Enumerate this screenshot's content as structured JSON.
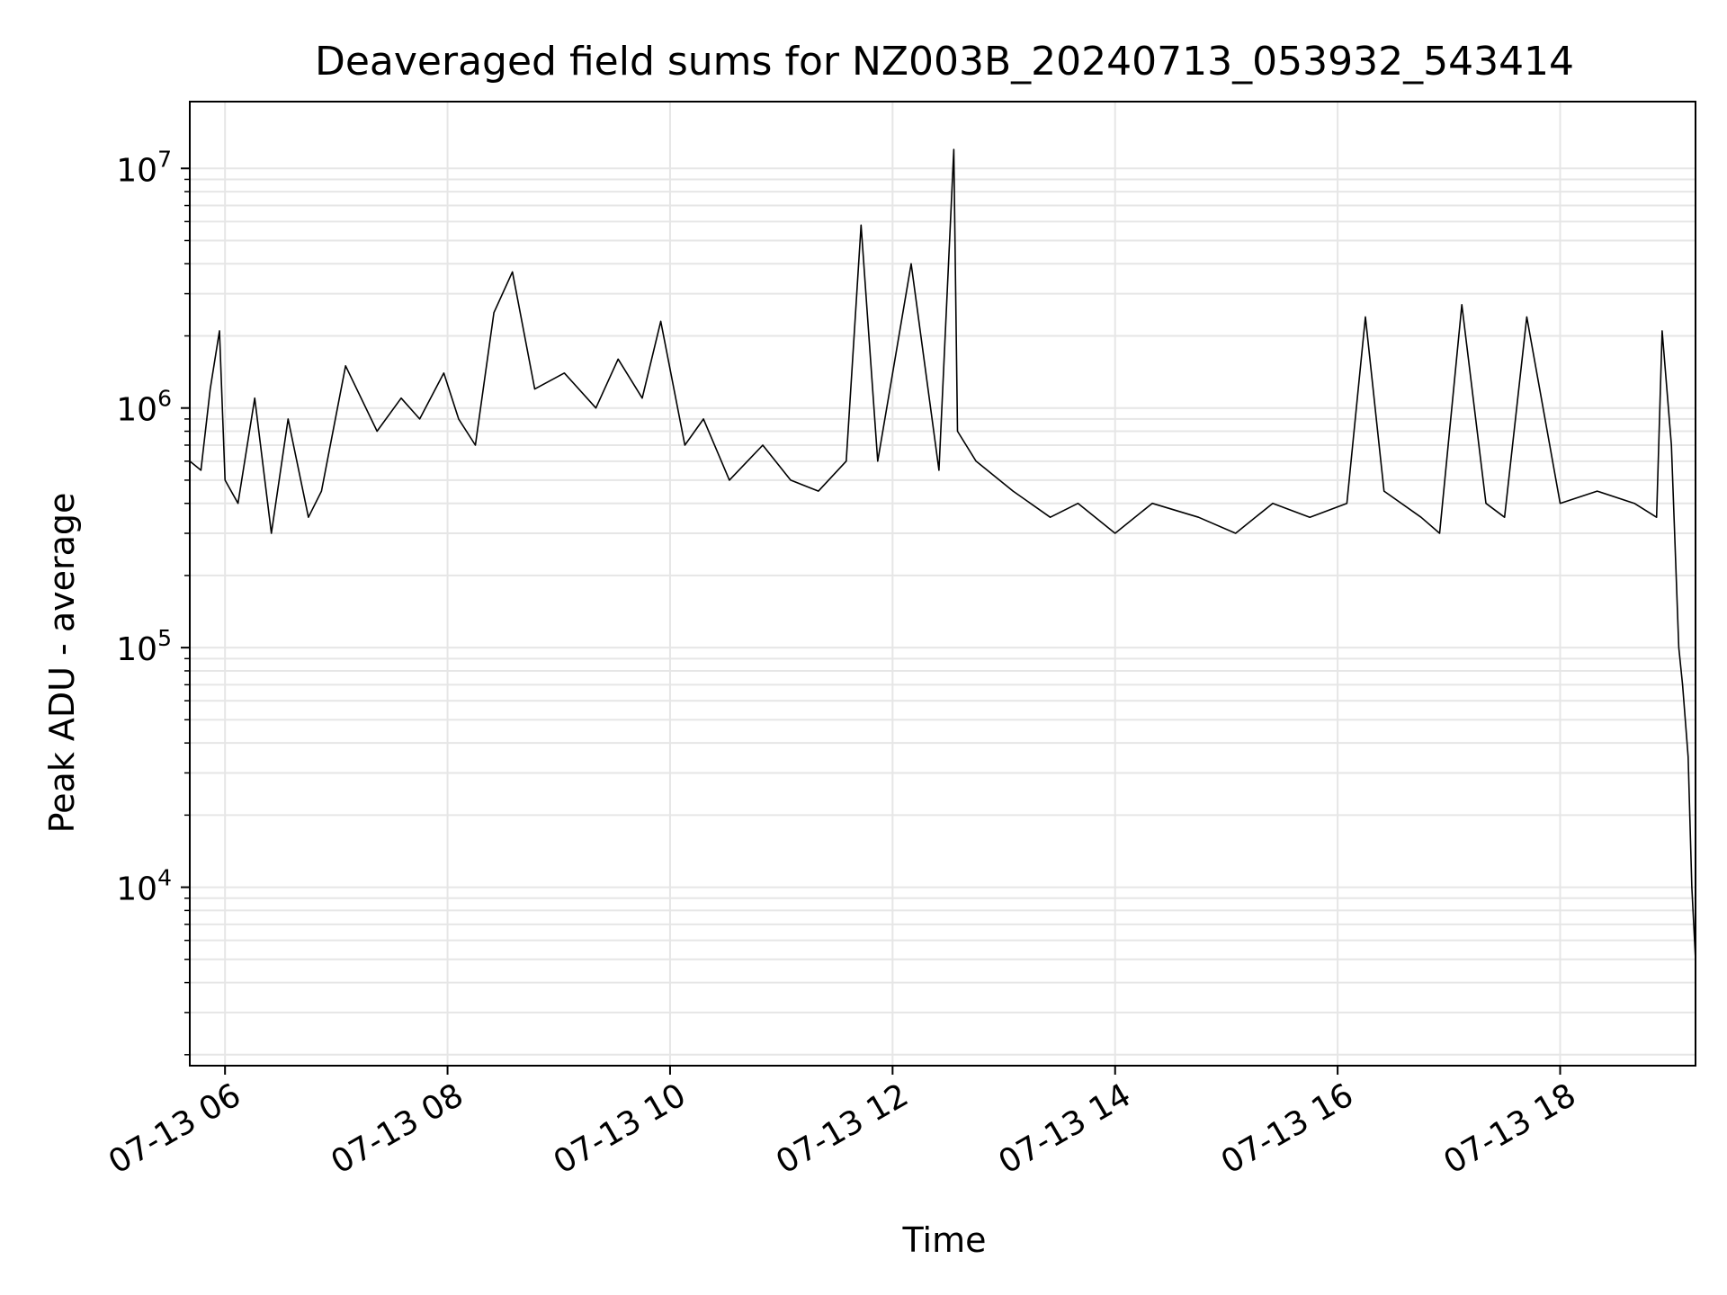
{
  "chart_data": {
    "type": "line",
    "title": "Deaveraged field sums for NZ003B_20240713_053932_543414",
    "xlabel": "Time",
    "ylabel": "Peak ADU - average",
    "yscale": "log",
    "grid": true,
    "legend": "none",
    "line_color": "#000000",
    "xlim": [
      "2024-07-13 05:41",
      "2024-07-13 19:13"
    ],
    "ylim": [
      1800,
      19000000
    ],
    "x_ticks": [
      {
        "x": "2024-07-13 06:00",
        "label": "07-13 06"
      },
      {
        "x": "2024-07-13 08:00",
        "label": "07-13 08"
      },
      {
        "x": "2024-07-13 10:00",
        "label": "07-13 10"
      },
      {
        "x": "2024-07-13 12:00",
        "label": "07-13 12"
      },
      {
        "x": "2024-07-13 14:00",
        "label": "07-13 14"
      },
      {
        "x": "2024-07-13 16:00",
        "label": "07-13 16"
      },
      {
        "x": "2024-07-13 18:00",
        "label": "07-13 18"
      }
    ],
    "y_ticks": [
      {
        "y": 10000,
        "base": "10",
        "exp": "4"
      },
      {
        "y": 100000,
        "base": "10",
        "exp": "5"
      },
      {
        "y": 1000000,
        "base": "10",
        "exp": "6"
      },
      {
        "y": 10000000,
        "base": "10",
        "exp": "7"
      }
    ],
    "series": [
      {
        "x": [
          "2024-07-13 05:41",
          "2024-07-13 05:47",
          "2024-07-13 05:52",
          "2024-07-13 05:57",
          "2024-07-13 06:00",
          "2024-07-13 06:07",
          "2024-07-13 06:16",
          "2024-07-13 06:25",
          "2024-07-13 06:34",
          "2024-07-13 06:45",
          "2024-07-13 06:52",
          "2024-07-13 07:05",
          "2024-07-13 07:22",
          "2024-07-13 07:35",
          "2024-07-13 07:45",
          "2024-07-13 07:58",
          "2024-07-13 08:06",
          "2024-07-13 08:15",
          "2024-07-13 08:25",
          "2024-07-13 08:35",
          "2024-07-13 08:47",
          "2024-07-13 09:03",
          "2024-07-13 09:20",
          "2024-07-13 09:32",
          "2024-07-13 09:45",
          "2024-07-13 09:55",
          "2024-07-13 10:08",
          "2024-07-13 10:18",
          "2024-07-13 10:32",
          "2024-07-13 10:50",
          "2024-07-13 11:05",
          "2024-07-13 11:20",
          "2024-07-13 11:35",
          "2024-07-13 11:43",
          "2024-07-13 11:52",
          "2024-07-13 12:10",
          "2024-07-13 12:25",
          "2024-07-13 12:33",
          "2024-07-13 12:35",
          "2024-07-13 12:45",
          "2024-07-13 13:05",
          "2024-07-13 13:25",
          "2024-07-13 13:40",
          "2024-07-13 14:00",
          "2024-07-13 14:20",
          "2024-07-13 14:45",
          "2024-07-13 15:05",
          "2024-07-13 15:25",
          "2024-07-13 15:45",
          "2024-07-13 16:05",
          "2024-07-13 16:15",
          "2024-07-13 16:25",
          "2024-07-13 16:45",
          "2024-07-13 16:55",
          "2024-07-13 17:07",
          "2024-07-13 17:20",
          "2024-07-13 17:30",
          "2024-07-13 17:42",
          "2024-07-13 18:00",
          "2024-07-13 18:20",
          "2024-07-13 18:40",
          "2024-07-13 18:52",
          "2024-07-13 18:55",
          "2024-07-13 19:00",
          "2024-07-13 19:04",
          "2024-07-13 19:06",
          "2024-07-13 19:09",
          "2024-07-13 19:11",
          "2024-07-13 19:13"
        ],
        "values": [
          600000,
          550000,
          1200000,
          2100000,
          500000,
          400000,
          1100000,
          300000,
          900000,
          350000,
          450000,
          1500000,
          800000,
          1100000,
          900000,
          1400000,
          900000,
          700000,
          2500000,
          3700000,
          1200000,
          1400000,
          1000000,
          1600000,
          1100000,
          2300000,
          700000,
          900000,
          500000,
          700000,
          500000,
          450000,
          600000,
          5800000,
          600000,
          4000000,
          550000,
          12000000,
          800000,
          600000,
          450000,
          350000,
          400000,
          300000,
          400000,
          350000,
          300000,
          400000,
          350000,
          400000,
          2400000,
          450000,
          350000,
          300000,
          2700000,
          400000,
          350000,
          2400000,
          400000,
          450000,
          400000,
          350000,
          2100000,
          700000,
          100000,
          70000,
          35000,
          10000,
          5000
        ]
      }
    ]
  }
}
